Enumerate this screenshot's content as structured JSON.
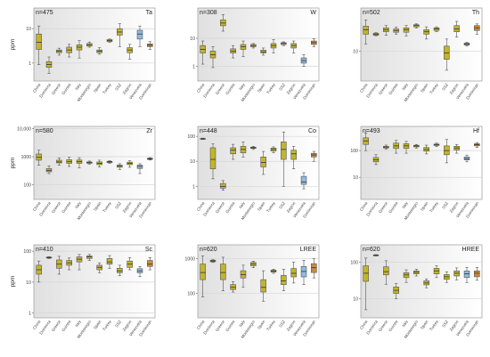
{
  "figure": {
    "category_names": [
      "China",
      "Dominica",
      "Greece",
      "Guinea",
      "Italy",
      "Montenegro",
      "Spain",
      "Turkey",
      "SSZ",
      "Zagros",
      "Venezuela",
      "Dominican"
    ],
    "color_groups": [
      "olive",
      "olive",
      "olive",
      "olive",
      "olive",
      "olive",
      "olive",
      "olive",
      "olive",
      "olive",
      "blue",
      "orange"
    ],
    "colors": {
      "olive": "#c2b52c",
      "blue": "#8fbbe0",
      "orange": "#cc8b3a",
      "box_stroke": "#555555",
      "median": "#333333",
      "grid": "#d6d6d6",
      "panel_shade_from": "#e0e0e0",
      "panel_shade_to": "#ffffff"
    },
    "y_unit_label": "ppm"
  },
  "chart_data": [
    {
      "type": "box",
      "element": "Ta",
      "n_label": "n=475",
      "scale": "log",
      "ylim": [
        0.3,
        40
      ],
      "yticks": [
        {
          "v": 1,
          "label": "1"
        },
        {
          "v": 10,
          "label": "10"
        }
      ],
      "boxes": [
        {
          "min": 0.9,
          "q1": 2.5,
          "median": 4.0,
          "q3": 7.0,
          "max": 12
        },
        {
          "min": 0.5,
          "q1": 0.75,
          "median": 0.9,
          "q3": 1.1,
          "max": 1.5
        },
        {
          "min": 1.7,
          "q1": 2.0,
          "median": 2.2,
          "q3": 2.4,
          "max": 2.7
        },
        {
          "min": 1.5,
          "q1": 2.0,
          "median": 2.4,
          "q3": 2.9,
          "max": 3.5
        },
        {
          "min": 1.4,
          "q1": 2.4,
          "median": 2.9,
          "q3": 3.4,
          "max": 4.5
        },
        {
          "min": 2.9,
          "q1": 3.1,
          "median": 3.4,
          "q3": 3.7,
          "max": 4.1
        },
        {
          "min": 1.8,
          "q1": 2.0,
          "median": 2.2,
          "q3": 2.4,
          "max": 2.8
        },
        {
          "min": 4.0,
          "q1": 4.2,
          "median": 4.5,
          "q3": 4.8,
          "max": 5.0
        },
        {
          "min": 3.0,
          "q1": 6.5,
          "median": 8.0,
          "q3": 10,
          "max": 14
        },
        {
          "min": 1.3,
          "q1": 2.0,
          "median": 2.4,
          "q3": 2.8,
          "max": 3.5
        },
        {
          "min": 3.0,
          "q1": 5.0,
          "median": 7.0,
          "q3": 9.0,
          "max": 12
        },
        {
          "min": 2.5,
          "q1": 3.0,
          "median": 3.3,
          "q3": 3.6,
          "max": 4.2
        }
      ]
    },
    {
      "type": "box",
      "element": "W",
      "n_label": "n=308",
      "scale": "log",
      "ylim": [
        0.3,
        120
      ],
      "yticks": [
        {
          "v": 1,
          "label": "1"
        },
        {
          "v": 10,
          "label": "10"
        }
      ],
      "boxes": [
        {
          "min": 1.2,
          "q1": 3.0,
          "median": 4.0,
          "q3": 5.5,
          "max": 8.0
        },
        {
          "min": 0.9,
          "q1": 2.0,
          "median": 2.6,
          "q3": 3.5,
          "max": 5.0
        },
        {
          "min": 18,
          "q1": 28,
          "median": 35,
          "q3": 45,
          "max": 70
        },
        {
          "min": 2.0,
          "q1": 3.0,
          "median": 3.5,
          "q3": 4.2,
          "max": 5.5
        },
        {
          "min": 2.2,
          "q1": 4.0,
          "median": 5.0,
          "q3": 6.0,
          "max": 8.0
        },
        {
          "min": 4.5,
          "q1": 5.0,
          "median": 5.5,
          "q3": 6.0,
          "max": 6.5
        },
        {
          "min": 2.5,
          "q1": 3.0,
          "median": 3.3,
          "q3": 3.8,
          "max": 4.5
        },
        {
          "min": 3.0,
          "q1": 4.5,
          "median": 5.5,
          "q3": 6.5,
          "max": 9.0
        },
        {
          "min": 5.5,
          "q1": 6.0,
          "median": 6.5,
          "q3": 7.0,
          "max": 7.5
        },
        {
          "min": 3.0,
          "q1": 4.5,
          "median": 5.5,
          "q3": 6.5,
          "max": 8.0
        },
        {
          "min": 1.0,
          "q1": 1.3,
          "median": 1.6,
          "q3": 2.0,
          "max": 2.6
        },
        {
          "min": 5.0,
          "q1": 6.0,
          "median": 7.0,
          "q3": 8.0,
          "max": 9.5
        }
      ]
    },
    {
      "type": "box",
      "element": "Th",
      "n_label": "n=502",
      "scale": "log",
      "ylim": [
        1.5,
        160
      ],
      "yticks": [
        {
          "v": 10,
          "label": "10"
        }
      ],
      "boxes": [
        {
          "min": 16,
          "q1": 30,
          "median": 40,
          "q3": 50,
          "max": 75
        },
        {
          "min": 27,
          "q1": 28,
          "median": 30,
          "q3": 32,
          "max": 33
        },
        {
          "min": 28,
          "q1": 35,
          "median": 40,
          "q3": 45,
          "max": 52
        },
        {
          "min": 30,
          "q1": 34,
          "median": 38,
          "q3": 42,
          "max": 47
        },
        {
          "min": 27,
          "q1": 34,
          "median": 40,
          "q3": 45,
          "max": 52
        },
        {
          "min": 45,
          "q1": 48,
          "median": 52,
          "q3": 55,
          "max": 58
        },
        {
          "min": 22,
          "q1": 30,
          "median": 35,
          "q3": 40,
          "max": 48
        },
        {
          "min": 35,
          "q1": 38,
          "median": 42,
          "q3": 45,
          "max": 48
        },
        {
          "min": 3.0,
          "q1": 6.0,
          "median": 9.0,
          "q3": 14,
          "max": 22
        },
        {
          "min": 25,
          "q1": 35,
          "median": 42,
          "q3": 52,
          "max": 68
        },
        {
          "min": 14,
          "q1": 15,
          "median": 16,
          "q3": 17,
          "max": 18
        },
        {
          "min": 30,
          "q1": 38,
          "median": 45,
          "q3": 52,
          "max": 58
        }
      ]
    },
    {
      "type": "box",
      "element": "Zr",
      "n_label": "n=580",
      "scale": "log",
      "ylim": [
        30,
        12000
      ],
      "yticks": [
        {
          "v": 100,
          "label": "100"
        },
        {
          "v": 1000,
          "label": "1000"
        },
        {
          "v": 10000,
          "label": "10,000"
        }
      ],
      "boxes": [
        {
          "min": 500,
          "q1": 750,
          "median": 950,
          "q3": 1250,
          "max": 1700
        },
        {
          "min": 250,
          "q1": 290,
          "median": 320,
          "q3": 380,
          "max": 470
        },
        {
          "min": 500,
          "q1": 600,
          "median": 650,
          "q3": 750,
          "max": 900
        },
        {
          "min": 450,
          "q1": 580,
          "median": 660,
          "q3": 780,
          "max": 950
        },
        {
          "min": 400,
          "q1": 580,
          "median": 660,
          "q3": 760,
          "max": 920
        },
        {
          "min": 540,
          "q1": 580,
          "median": 620,
          "q3": 650,
          "max": 700
        },
        {
          "min": 430,
          "q1": 520,
          "median": 580,
          "q3": 650,
          "max": 750
        },
        {
          "min": 580,
          "q1": 620,
          "median": 650,
          "q3": 680,
          "max": 720
        },
        {
          "min": 350,
          "q1": 420,
          "median": 460,
          "q3": 500,
          "max": 560
        },
        {
          "min": 420,
          "q1": 520,
          "median": 580,
          "q3": 640,
          "max": 720
        },
        {
          "min": 250,
          "q1": 380,
          "median": 450,
          "q3": 500,
          "max": 560
        },
        {
          "min": 760,
          "q1": 800,
          "median": 840,
          "q3": 880,
          "max": 920
        }
      ]
    },
    {
      "type": "box",
      "element": "Co",
      "n_label": "n=448",
      "scale": "log",
      "ylim": [
        0.3,
        250
      ],
      "yticks": [
        {
          "v": 1,
          "label": "1"
        },
        {
          "v": 10,
          "label": "10"
        },
        {
          "v": 100,
          "label": "100"
        }
      ],
      "boxes": [
        {
          "min": 75,
          "q1": 78,
          "median": 80,
          "q3": 82,
          "max": 85
        },
        {
          "min": 2.0,
          "q1": 5.0,
          "median": 12,
          "q3": 35,
          "max": 50
        },
        {
          "min": 0.7,
          "q1": 0.85,
          "median": 1.0,
          "q3": 1.3,
          "max": 1.7
        },
        {
          "min": 12,
          "q1": 20,
          "median": 28,
          "q3": 35,
          "max": 48
        },
        {
          "min": 15,
          "q1": 22,
          "median": 30,
          "q3": 40,
          "max": 60
        },
        {
          "min": 30,
          "q1": 33,
          "median": 35,
          "q3": 37,
          "max": 40
        },
        {
          "min": 3.0,
          "q1": 6.0,
          "median": 9.0,
          "q3": 15,
          "max": 25
        },
        {
          "min": 22,
          "q1": 26,
          "median": 30,
          "q3": 34,
          "max": 38
        },
        {
          "min": 1.0,
          "q1": 12,
          "median": 30,
          "q3": 60,
          "max": 150
        },
        {
          "min": 5.0,
          "q1": 12,
          "median": 20,
          "q3": 28,
          "max": 40
        },
        {
          "min": 0.8,
          "q1": 1.2,
          "median": 1.5,
          "q3": 2.5,
          "max": 3.5
        },
        {
          "min": 10,
          "q1": 15,
          "median": 18,
          "q3": 21,
          "max": 25
        }
      ]
    },
    {
      "type": "box",
      "element": "Hf",
      "n_label": "n=493",
      "scale": "log",
      "ylim": [
        1.5,
        800
      ],
      "yticks": [
        {
          "v": 10,
          "label": "10"
        },
        {
          "v": 100,
          "label": "100"
        }
      ],
      "boxes": [
        {
          "min": 100,
          "q1": 170,
          "median": 230,
          "q3": 300,
          "max": 450
        },
        {
          "min": 30,
          "q1": 38,
          "median": 45,
          "q3": 55,
          "max": 70
        },
        {
          "min": 115,
          "q1": 125,
          "median": 135,
          "q3": 145,
          "max": 160
        },
        {
          "min": 80,
          "q1": 120,
          "median": 150,
          "q3": 190,
          "max": 240
        },
        {
          "min": 80,
          "q1": 120,
          "median": 150,
          "q3": 180,
          "max": 220
        },
        {
          "min": 125,
          "q1": 138,
          "median": 148,
          "q3": 158,
          "max": 170
        },
        {
          "min": 75,
          "q1": 95,
          "median": 110,
          "q3": 130,
          "max": 160
        },
        {
          "min": 140,
          "q1": 155,
          "median": 165,
          "q3": 175,
          "max": 190
        },
        {
          "min": 35,
          "q1": 70,
          "median": 100,
          "q3": 150,
          "max": 260
        },
        {
          "min": 80,
          "q1": 105,
          "median": 125,
          "q3": 145,
          "max": 170
        },
        {
          "min": 38,
          "q1": 45,
          "median": 50,
          "q3": 58,
          "max": 68
        },
        {
          "min": 130,
          "q1": 150,
          "median": 165,
          "q3": 180,
          "max": 200
        }
      ]
    },
    {
      "type": "box",
      "element": "Sc",
      "n_label": "n=410",
      "scale": "log",
      "ylim": [
        0.7,
        160
      ],
      "yticks": [
        {
          "v": 1,
          "label": "1"
        },
        {
          "v": 10,
          "label": "10"
        },
        {
          "v": 100,
          "label": "100"
        }
      ],
      "boxes": [
        {
          "min": 10,
          "q1": 18,
          "median": 25,
          "q3": 35,
          "max": 48
        },
        {
          "min": 58,
          "q1": 60,
          "median": 62,
          "q3": 64,
          "max": 66
        },
        {
          "min": 18,
          "q1": 28,
          "median": 38,
          "q3": 52,
          "max": 68
        },
        {
          "min": 25,
          "q1": 35,
          "median": 42,
          "q3": 50,
          "max": 60
        },
        {
          "min": 25,
          "q1": 45,
          "median": 55,
          "q3": 65,
          "max": 78
        },
        {
          "min": 50,
          "q1": 58,
          "median": 65,
          "q3": 70,
          "max": 78
        },
        {
          "min": 20,
          "q1": 25,
          "median": 30,
          "q3": 35,
          "max": 42
        },
        {
          "min": 28,
          "q1": 38,
          "median": 45,
          "q3": 58,
          "max": 72
        },
        {
          "min": 16,
          "q1": 20,
          "median": 23,
          "q3": 28,
          "max": 35
        },
        {
          "min": 25,
          "q1": 30,
          "median": 38,
          "q3": 48,
          "max": 62
        },
        {
          "min": 15,
          "q1": 20,
          "median": 23,
          "q3": 27,
          "max": 32
        },
        {
          "min": 25,
          "q1": 32,
          "median": 38,
          "q3": 50,
          "max": 62
        }
      ]
    },
    {
      "type": "box",
      "element": "LREE",
      "n_label": "n=620",
      "scale": "log",
      "ylim": [
        20,
        2500
      ],
      "yticks": [
        {
          "v": 100,
          "label": "100"
        },
        {
          "v": 1000,
          "label": "1000"
        }
      ],
      "boxes": [
        {
          "min": 80,
          "q1": 250,
          "median": 400,
          "q3": 700,
          "max": 1200
        },
        {
          "min": 780,
          "q1": 820,
          "median": 860,
          "q3": 900,
          "max": 940
        },
        {
          "min": 120,
          "q1": 250,
          "median": 400,
          "q3": 700,
          "max": 1100
        },
        {
          "min": 110,
          "q1": 130,
          "median": 150,
          "q3": 180,
          "max": 220
        },
        {
          "min": 150,
          "q1": 280,
          "median": 350,
          "q3": 450,
          "max": 650
        },
        {
          "min": 550,
          "q1": 620,
          "median": 700,
          "q3": 780,
          "max": 850
        },
        {
          "min": 60,
          "q1": 110,
          "median": 150,
          "q3": 250,
          "max": 450
        },
        {
          "min": 380,
          "q1": 410,
          "median": 440,
          "q3": 470,
          "max": 500
        },
        {
          "min": 120,
          "q1": 180,
          "median": 230,
          "q3": 330,
          "max": 500
        },
        {
          "min": 200,
          "q1": 300,
          "median": 380,
          "q3": 520,
          "max": 800
        },
        {
          "min": 180,
          "q1": 300,
          "median": 430,
          "q3": 600,
          "max": 900
        },
        {
          "min": 280,
          "q1": 400,
          "median": 550,
          "q3": 720,
          "max": 1000
        }
      ]
    },
    {
      "type": "box",
      "element": "HREE",
      "n_label": "n=620",
      "scale": "log",
      "ylim": [
        3,
        300
      ],
      "yticks": [
        {
          "v": 10,
          "label": "10"
        },
        {
          "v": 100,
          "label": "100"
        }
      ],
      "boxes": [
        {
          "min": 5,
          "q1": 30,
          "median": 50,
          "q3": 80,
          "max": 130
        },
        {
          "min": 148,
          "q1": 152,
          "median": 155,
          "q3": 158,
          "max": 162
        },
        {
          "min": 25,
          "q1": 45,
          "median": 55,
          "q3": 75,
          "max": 110
        },
        {
          "min": 10,
          "q1": 14,
          "median": 17,
          "q3": 21,
          "max": 26
        },
        {
          "min": 28,
          "q1": 38,
          "median": 45,
          "q3": 52,
          "max": 62
        },
        {
          "min": 42,
          "q1": 48,
          "median": 53,
          "q3": 58,
          "max": 64
        },
        {
          "min": 20,
          "q1": 24,
          "median": 27,
          "q3": 31,
          "max": 35
        },
        {
          "min": 38,
          "q1": 48,
          "median": 58,
          "q3": 68,
          "max": 80
        },
        {
          "min": 28,
          "q1": 34,
          "median": 40,
          "q3": 46,
          "max": 55
        },
        {
          "min": 33,
          "q1": 42,
          "median": 50,
          "q3": 58,
          "max": 70
        },
        {
          "min": 28,
          "q1": 38,
          "median": 48,
          "q3": 58,
          "max": 72
        },
        {
          "min": 32,
          "q1": 40,
          "median": 50,
          "q3": 58,
          "max": 72
        }
      ]
    }
  ]
}
